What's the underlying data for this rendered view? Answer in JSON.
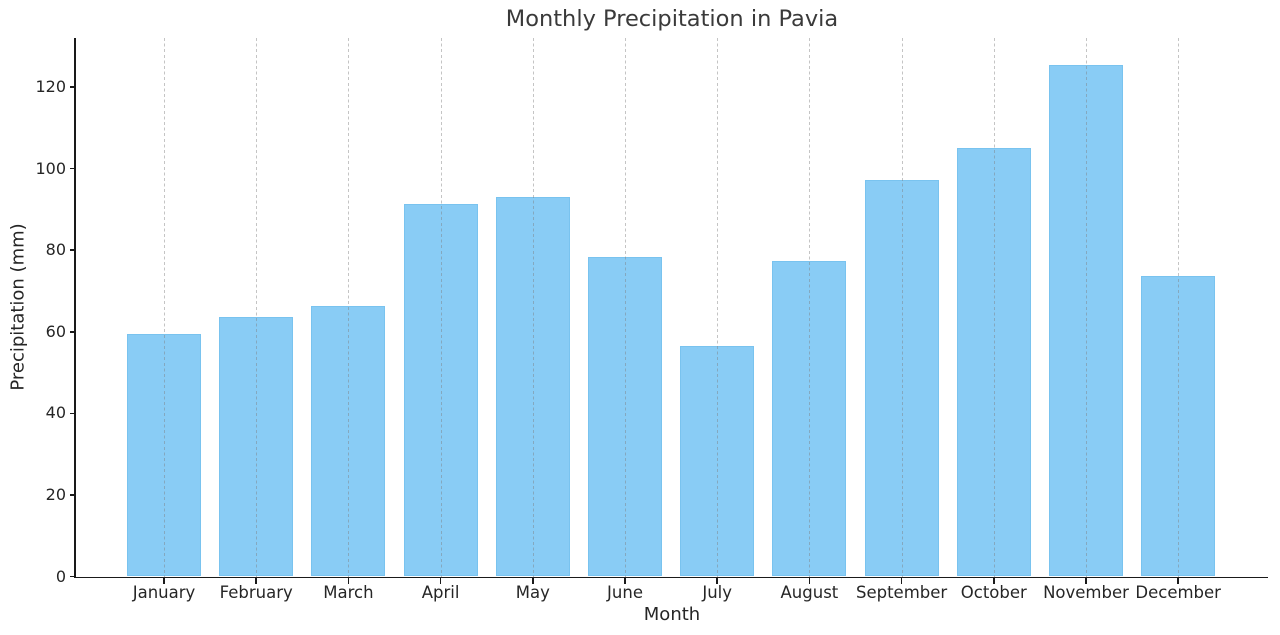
{
  "chart_data": {
    "type": "bar",
    "title": "Monthly Precipitation in Pavia",
    "xlabel": "Month",
    "ylabel": "Precipitation (mm)",
    "categories": [
      "January",
      "February",
      "March",
      "April",
      "May",
      "June",
      "July",
      "August",
      "September",
      "October",
      "November",
      "December"
    ],
    "values": [
      59.4,
      63.6,
      66.4,
      91.4,
      93.0,
      78.4,
      56.5,
      77.3,
      97.3,
      105.0,
      125.4,
      73.7
    ],
    "unit": "mm",
    "ylim": [
      0,
      132
    ],
    "yticks": [
      0,
      20,
      40,
      60,
      80,
      100,
      120
    ],
    "grid": "vertical-dashed-only",
    "legend_position": "none",
    "colors": {
      "bar_fill": "#89CCF5",
      "bar_edge": "#79C3EF",
      "gridline": "#7D7D7D",
      "axis": "#1A1A1A",
      "tick_text": "#262626",
      "title_text": "#3A3A3A",
      "background": "#FFFFFF"
    }
  }
}
